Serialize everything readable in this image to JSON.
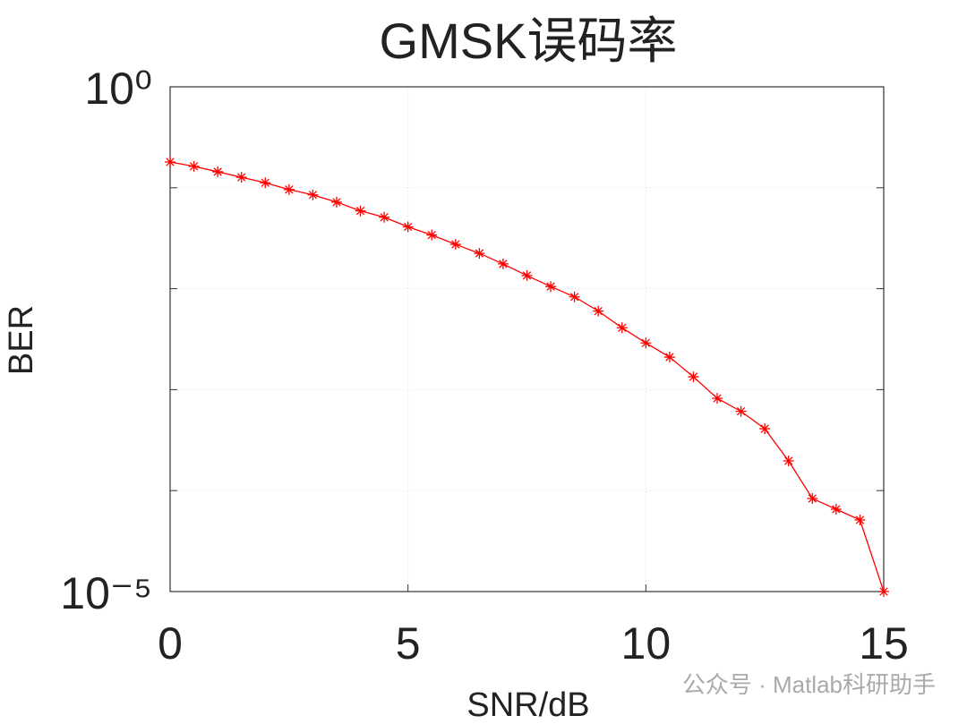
{
  "chart_data": {
    "type": "line",
    "title": "GMSK误码率",
    "xlabel": "SNR/dB",
    "ylabel": "BER",
    "annotation": "公众号 · Matlab科研助手",
    "x": [
      0,
      0.5,
      1,
      1.5,
      2,
      2.5,
      3,
      3.5,
      4,
      4.5,
      5,
      5.5,
      6,
      6.5,
      7,
      7.5,
      8,
      8.5,
      9,
      9.5,
      10,
      10.5,
      11,
      11.5,
      12,
      12.5,
      13,
      13.5,
      14,
      14.5,
      15
    ],
    "values": [
      0.18,
      0.163,
      0.144,
      0.127,
      0.112,
      0.096,
      0.085,
      0.072,
      0.059,
      0.051,
      0.041,
      0.034,
      0.0275,
      0.0224,
      0.0176,
      0.0135,
      0.0105,
      0.0083,
      0.006,
      0.0041,
      0.0029,
      0.0021,
      0.00134,
      0.00082,
      0.00061,
      0.00041,
      0.000197,
      8.35e-05,
      6.54e-05,
      5.12e-05,
      1e-05
    ],
    "color": "#ff0000",
    "marker": "asterisk",
    "xlim": [
      0,
      15
    ],
    "xticks": [
      0,
      5,
      10,
      15
    ],
    "ylim": [
      1e-05,
      1
    ],
    "ylog": true,
    "yticks": [
      {
        "value": 1e-05,
        "label": "10⁻⁵"
      },
      {
        "value": 1,
        "label": "10⁰"
      }
    ],
    "yminor": [
      0.0001,
      0.001,
      0.01,
      0.1
    ],
    "grid": true
  }
}
